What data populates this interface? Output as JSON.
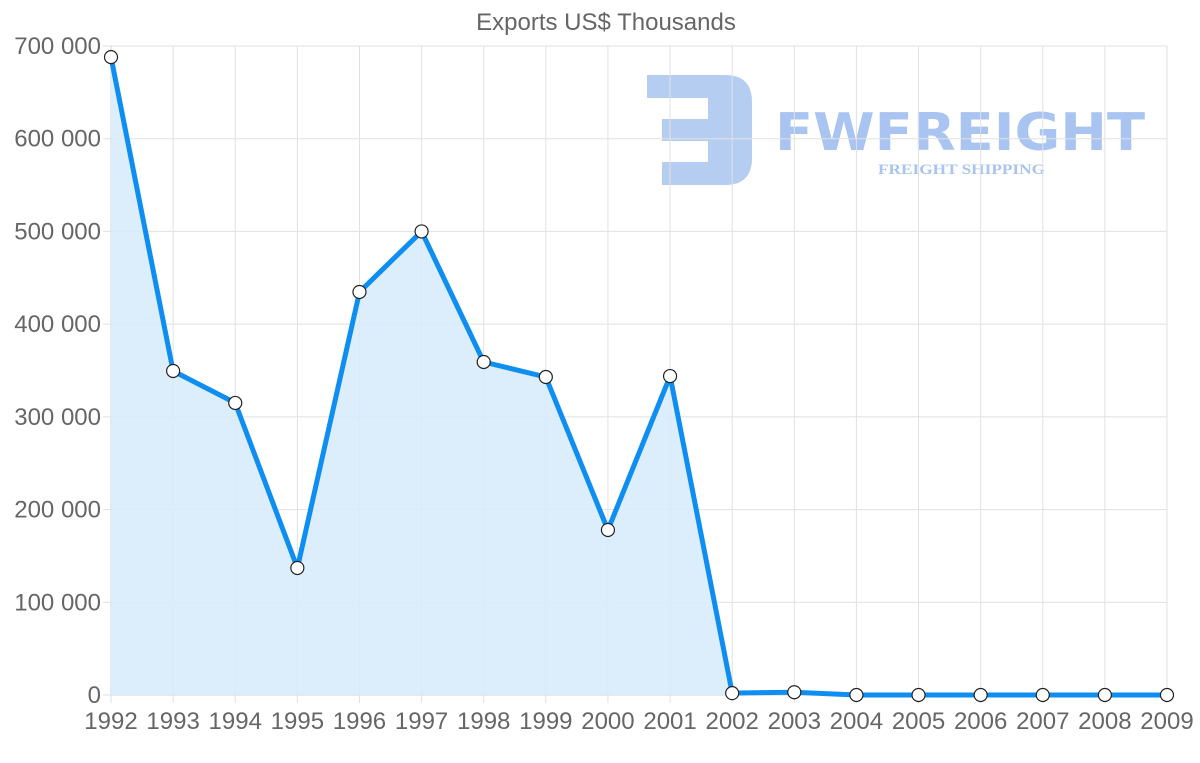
{
  "chart_data": {
    "type": "area",
    "title": "Exports US$ Thousands",
    "xlabel": "",
    "ylabel": "",
    "categories": [
      "1992",
      "1993",
      "1994",
      "1995",
      "1996",
      "1997",
      "1998",
      "1999",
      "2000",
      "2001",
      "2002",
      "2003",
      "2004",
      "2005",
      "2006",
      "2007",
      "2008",
      "2009"
    ],
    "series": [
      {
        "name": "Exports US$ Thousands",
        "values": [
          688000,
          349500,
          315000,
          137000,
          434700,
          500000,
          359200,
          343000,
          178000,
          344000,
          2000,
          3000,
          0,
          0,
          0,
          0,
          0,
          0
        ],
        "line_color": "#0e8ef0",
        "fill_color": "#d8ebfb",
        "fill_until_index": 10
      }
    ],
    "ylim": [
      0,
      700000
    ],
    "yticks": [
      0,
      100000,
      200000,
      300000,
      400000,
      500000,
      600000,
      700000
    ],
    "ytick_labels": [
      "0",
      "100 000",
      "200 000",
      "300 000",
      "400 000",
      "500 000",
      "600 000",
      "700 000"
    ],
    "grid": true,
    "legend": "none",
    "markers": "hollow-circle"
  },
  "watermark": {
    "brand": "FWFREIGHT",
    "tagline": "FREIGHT SHIPPING"
  }
}
